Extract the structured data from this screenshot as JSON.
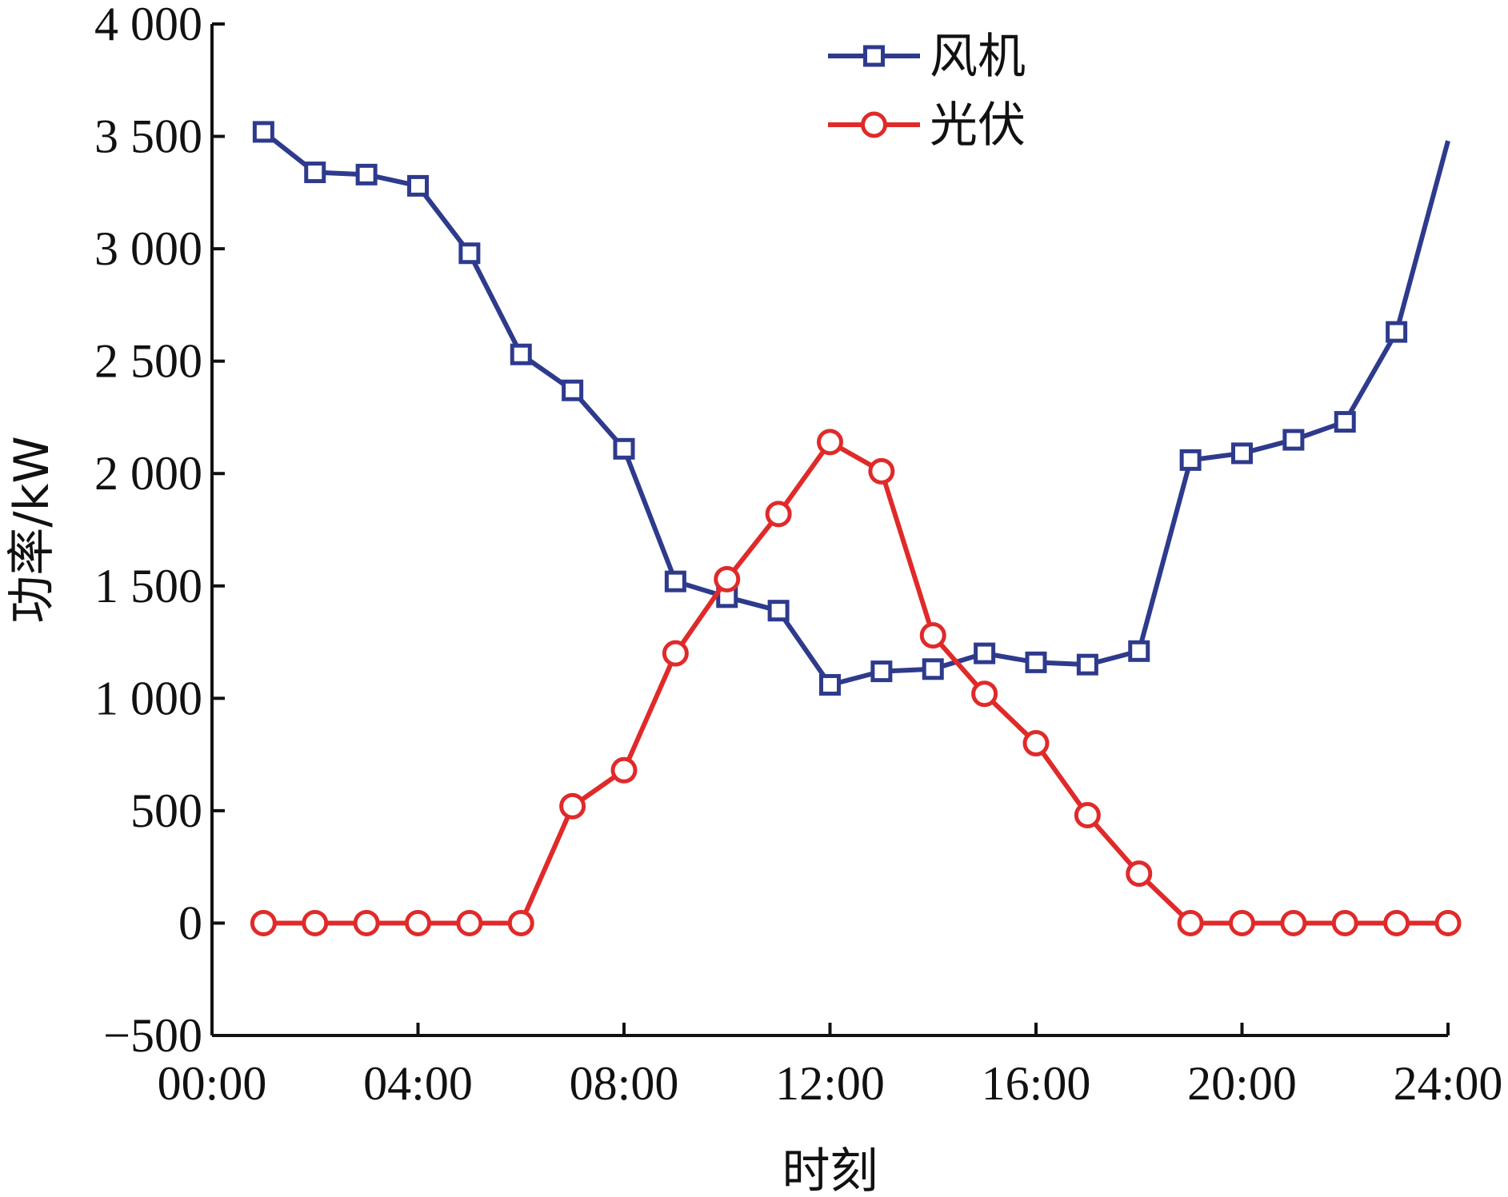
{
  "chart_data": {
    "type": "line",
    "xlabel": "时刻",
    "ylabel": "功率/kW",
    "ylim": [
      -500,
      4000
    ],
    "xlim": [
      0,
      24
    ],
    "yticks": [
      {
        "value": 4000,
        "label": "4 000"
      },
      {
        "value": 3500,
        "label": "3 500"
      },
      {
        "value": 3000,
        "label": "3 000"
      },
      {
        "value": 2500,
        "label": "2 500"
      },
      {
        "value": 2000,
        "label": "2 000"
      },
      {
        "value": 1500,
        "label": "1 500"
      },
      {
        "value": 1000,
        "label": "1 000"
      },
      {
        "value": 500,
        "label": "500"
      },
      {
        "value": 0,
        "label": "0"
      },
      {
        "value": -500,
        "label": "−500"
      }
    ],
    "xticks": [
      {
        "value": 0,
        "label": "00:00"
      },
      {
        "value": 4,
        "label": "04:00"
      },
      {
        "value": 8,
        "label": "08:00"
      },
      {
        "value": 12,
        "label": "12:00"
      },
      {
        "value": 16,
        "label": "16:00"
      },
      {
        "value": 20,
        "label": "20:00"
      },
      {
        "value": 24,
        "label": "24:00"
      }
    ],
    "legend_position": "top-center",
    "grid": false,
    "series": [
      {
        "name": "风机",
        "color": "#2e3a8c",
        "marker": "square",
        "x": [
          1,
          2,
          3,
          4,
          5,
          6,
          7,
          8,
          9,
          10,
          11,
          12,
          13,
          14,
          15,
          16,
          17,
          18,
          19,
          20,
          21,
          22,
          23,
          24
        ],
        "y": [
          3520,
          3340,
          3330,
          3280,
          2980,
          2530,
          2370,
          2110,
          1520,
          1450,
          1390,
          1060,
          1120,
          1130,
          1200,
          1160,
          1150,
          1210,
          2060,
          2090,
          2150,
          2230,
          2630,
          3480
        ],
        "marker_count": 23
      },
      {
        "name": "光伏",
        "color": "#e02a2a",
        "marker": "circle",
        "x": [
          1,
          2,
          3,
          4,
          5,
          6,
          7,
          8,
          9,
          10,
          11,
          12,
          13,
          14,
          15,
          16,
          17,
          18,
          19,
          20,
          21,
          22,
          23,
          24
        ],
        "y": [
          0,
          0,
          0,
          0,
          0,
          0,
          520,
          680,
          1200,
          1530,
          1820,
          2140,
          2010,
          1280,
          1020,
          800,
          480,
          220,
          0,
          0,
          0,
          0,
          0,
          0
        ],
        "marker_count": 24
      }
    ]
  }
}
